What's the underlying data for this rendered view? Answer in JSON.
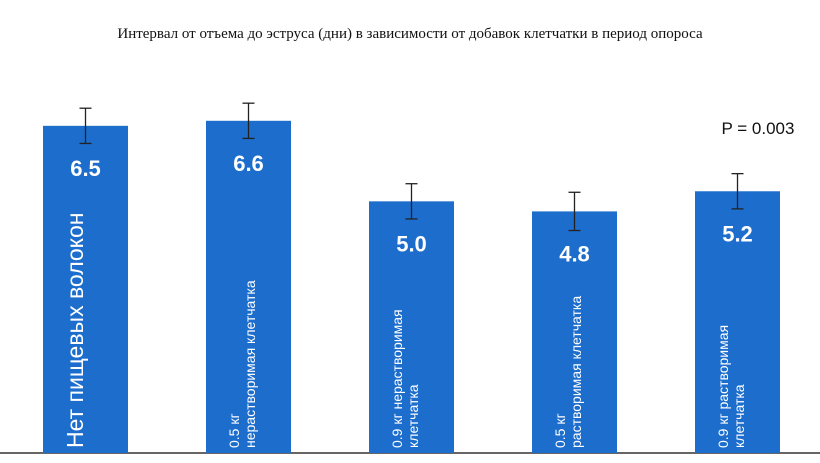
{
  "chart_data": {
    "type": "bar",
    "title": "Интервал от отъема до эструса (дни) в зависимости от добавок клетчатки в период опороса",
    "categories": [
      "Нет пищевых волокон",
      "0.5 кг\nнерастворимая клетчатка",
      "0.9 кг нерастворимая\nклетчатка",
      "0.5 кг\nрастворимая клетчатка",
      "0.9 кг растворимая\nклетчатка"
    ],
    "values": [
      6.5,
      6.6,
      5.0,
      4.8,
      5.2
    ],
    "value_labels": [
      "6.5",
      "6.6",
      "5.0",
      "4.8",
      "5.2"
    ],
    "errors": [
      0.35,
      0.35,
      0.35,
      0.38,
      0.35
    ],
    "color": "#1c6dcc",
    "ylim": [
      0,
      9
    ],
    "annotation": "P = 0.003"
  }
}
